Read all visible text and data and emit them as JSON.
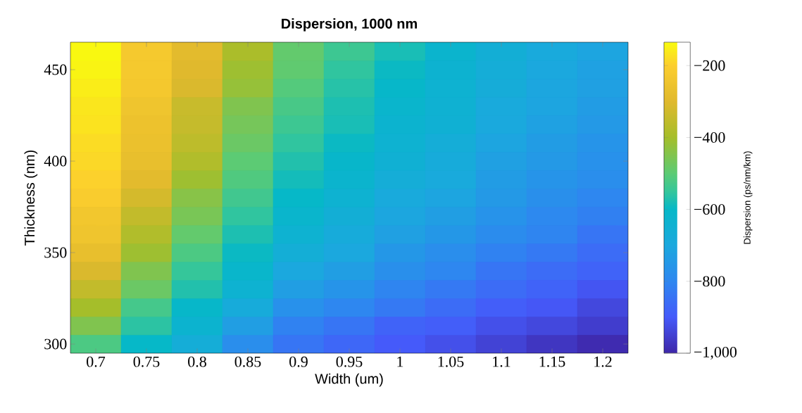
{
  "chart_data": {
    "type": "heatmap",
    "title": "Dispersion, 1000 nm",
    "xlabel": "Width (um)",
    "ylabel": "Thickness (nm)",
    "clabel": "Dispersion (ps/nm/km)",
    "categories": [
      "0.7",
      "0.75",
      "0.8",
      "0.85",
      "0.9",
      "0.95",
      "1",
      "1.05",
      "1.1",
      "1.15",
      "1.2"
    ],
    "y_categories": [
      null,
      "450",
      null,
      null,
      null,
      null,
      "400",
      null,
      null,
      null,
      null,
      "350",
      null,
      null,
      null,
      null,
      "300"
    ],
    "cells": [
      [
        -140,
        -225,
        -290,
        -390,
        -490,
        -540,
        -580,
        -625,
        -660,
        -690,
        -710
      ],
      [
        -145,
        -225,
        -300,
        -410,
        -495,
        -555,
        -595,
        -635,
        -670,
        -700,
        -720
      ],
      [
        -155,
        -230,
        -310,
        -420,
        -510,
        -565,
        -605,
        -640,
        -675,
        -705,
        -725
      ],
      [
        -165,
        -245,
        -340,
        -450,
        -525,
        -575,
        -620,
        -645,
        -690,
        -710,
        -735
      ],
      [
        -170,
        -255,
        -345,
        -465,
        -540,
        -580,
        -630,
        -650,
        -695,
        -720,
        -745
      ],
      [
        -180,
        -260,
        -360,
        -480,
        -555,
        -595,
        -640,
        -670,
        -710,
        -735,
        -760
      ],
      [
        -185,
        -270,
        -380,
        -500,
        -570,
        -610,
        -650,
        -680,
        -725,
        -745,
        -770
      ],
      [
        -195,
        -290,
        -410,
        -515,
        -585,
        -625,
        -670,
        -690,
        -735,
        -760,
        -780
      ],
      [
        -210,
        -320,
        -440,
        -535,
        -600,
        -640,
        -690,
        -710,
        -745,
        -775,
        -800
      ],
      [
        -235,
        -350,
        -460,
        -555,
        -620,
        -660,
        -705,
        -730,
        -765,
        -795,
        -815
      ],
      [
        -245,
        -380,
        -490,
        -575,
        -640,
        -680,
        -725,
        -750,
        -785,
        -805,
        -840
      ],
      [
        -270,
        -410,
        -520,
        -595,
        -665,
        -700,
        -750,
        -780,
        -810,
        -830,
        -860
      ],
      [
        -310,
        -450,
        -550,
        -615,
        -700,
        -730,
        -775,
        -800,
        -840,
        -860,
        -880
      ],
      [
        -350,
        -480,
        -570,
        -640,
        -730,
        -760,
        -805,
        -830,
        -860,
        -880,
        -910
      ],
      [
        -400,
        -530,
        -605,
        -680,
        -770,
        -800,
        -830,
        -860,
        -890,
        -905,
        -935
      ],
      [
        -450,
        -560,
        -630,
        -730,
        -810,
        -840,
        -880,
        -890,
        -920,
        -935,
        -955
      ],
      [
        -520,
        -600,
        -670,
        -780,
        -840,
        -870,
        -900,
        -920,
        -945,
        -970,
        -990
      ]
    ],
    "clim": [
      -1000,
      -135
    ],
    "cticks": [
      {
        "value": -1000,
        "label": "−1,000"
      },
      {
        "value": -800,
        "label": "−800"
      },
      {
        "value": -600,
        "label": "−600"
      },
      {
        "value": -400,
        "label": "−400"
      },
      {
        "value": -200,
        "label": "−200"
      }
    ]
  }
}
